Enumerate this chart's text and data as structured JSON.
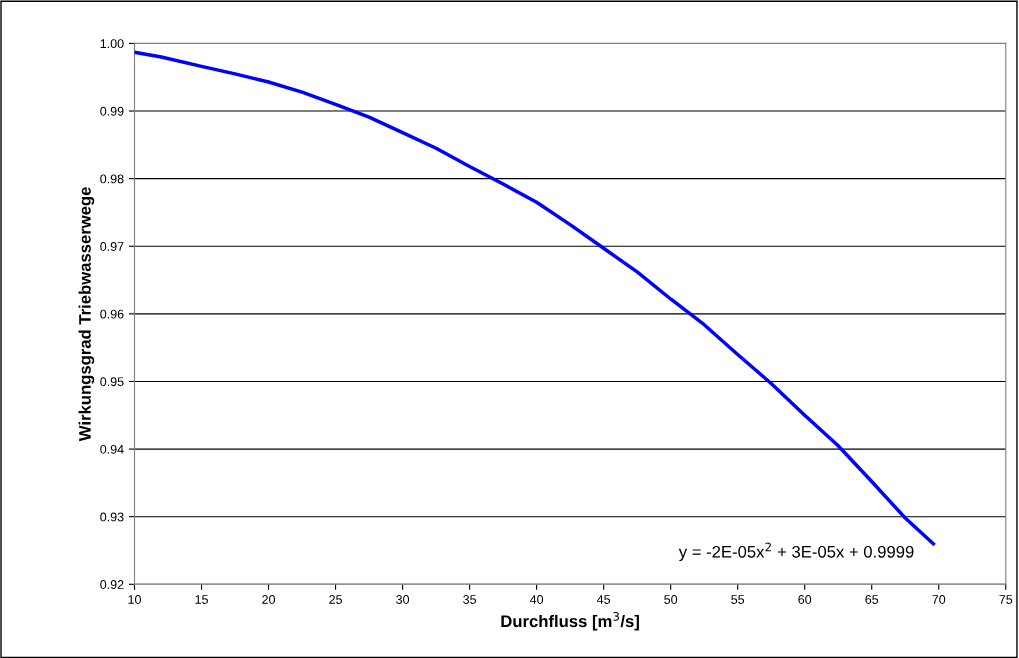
{
  "chart_data": {
    "type": "line",
    "xlabel": "Durchfluss [m$^{3}$/s]",
    "ylabel": "Wirkungsgrad Triebwasserwege",
    "annotations": [
      "y = -2E-05x$^{2}$ + 3E-05x + 0.9999"
    ],
    "x": [
      10,
      12,
      15,
      17.5,
      20,
      22.5,
      25,
      27.5,
      30,
      32.5,
      35,
      37.5,
      40,
      42.5,
      45,
      47.5,
      50,
      52.5,
      55,
      57.5,
      60,
      62.5,
      65,
      67.5,
      69.6
    ],
    "series": [
      {
        "color": "#0000ff",
        "values": [
          0.9987,
          0.998,
          0.9966,
          0.9955,
          0.9943,
          0.9928,
          0.991,
          0.9891,
          0.9868,
          0.9845,
          0.9818,
          0.9792,
          0.9765,
          0.9732,
          0.9697,
          0.9662,
          0.9622,
          0.9584,
          0.954,
          0.9497,
          0.945,
          0.9405,
          0.9352,
          0.9298,
          0.926
        ]
      }
    ],
    "xlim": [
      10,
      75
    ],
    "xticks": [
      10,
      15,
      20,
      25,
      30,
      35,
      40,
      45,
      50,
      55,
      60,
      65,
      70,
      75
    ],
    "ylim": [
      0.92,
      1.0
    ],
    "yticks": [
      {
        "value": 0.92,
        "label": "0.92"
      },
      {
        "value": 0.93,
        "label": "0.93"
      },
      {
        "value": 0.94,
        "label": "0.94"
      },
      {
        "value": 0.95,
        "label": "0.95"
      },
      {
        "value": 0.96,
        "label": "0.96"
      },
      {
        "value": 0.97,
        "label": "0.97"
      },
      {
        "value": 0.98,
        "label": "0.98"
      },
      {
        "value": 0.99,
        "label": "0.99"
      },
      {
        "value": 1.0,
        "label": "1.00"
      }
    ],
    "grid": "y",
    "marker": "none",
    "line_style": "solid",
    "legend": false
  }
}
